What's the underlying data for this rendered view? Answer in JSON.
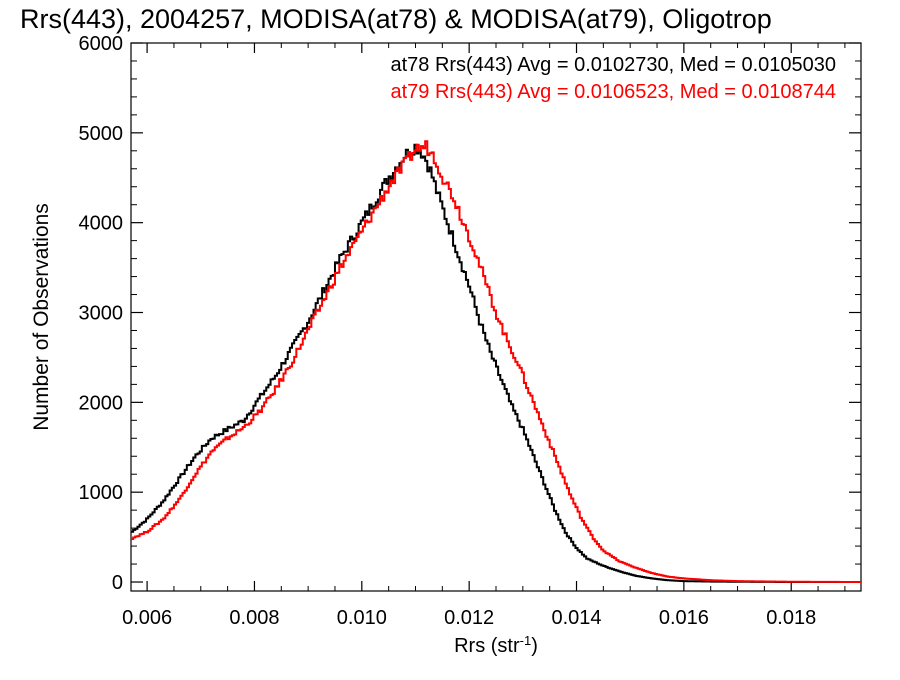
{
  "chart_data": {
    "type": "line",
    "title": "Rrs(443), 2004257, MODISA(at78) & MODISA(at79), Oligotrop",
    "xlabel": "Rrs (str",
    "xlabel_sup": "-1",
    "xlabel_close": ")",
    "ylabel": "Number of Observations",
    "xlim": [
      0.0057,
      0.0193
    ],
    "ylim": [
      -100,
      6000
    ],
    "x_ticks": [
      0.006,
      0.008,
      0.01,
      0.012,
      0.014,
      0.016,
      0.018
    ],
    "x_tick_labels": [
      "0.006",
      "0.008",
      "0.010",
      "0.012",
      "0.014",
      "0.016",
      "0.018"
    ],
    "y_ticks": [
      0,
      1000,
      2000,
      3000,
      4000,
      5000,
      6000
    ],
    "y_tick_labels": [
      "0",
      "1000",
      "2000",
      "3000",
      "4000",
      "5000",
      "6000"
    ],
    "grid": false,
    "legend_position": "top-right",
    "series": [
      {
        "label": "at78 Rrs(443) Avg = 0.0102730, Med = 0.0105030",
        "color": "#000000",
        "x": [
          0.0057,
          0.006,
          0.0063,
          0.0066,
          0.0069,
          0.0072,
          0.0075,
          0.0078,
          0.0081,
          0.0084,
          0.0087,
          0.009,
          0.0093,
          0.0096,
          0.0099,
          0.0102,
          0.0105,
          0.0108,
          0.011,
          0.0111,
          0.0112,
          0.0113,
          0.0114,
          0.0116,
          0.0118,
          0.012,
          0.0122,
          0.0124,
          0.0126,
          0.0128,
          0.013,
          0.0132,
          0.0134,
          0.0136,
          0.0138,
          0.014,
          0.0142,
          0.0145,
          0.0148,
          0.0151,
          0.0154,
          0.0157,
          0.016,
          0.0165,
          0.017,
          0.018,
          0.0193
        ],
        "y": [
          550,
          700,
          900,
          1150,
          1400,
          1600,
          1700,
          1800,
          2050,
          2300,
          2600,
          2900,
          3250,
          3600,
          3900,
          4200,
          4500,
          4750,
          4850,
          4800,
          4700,
          4550,
          4350,
          4000,
          3650,
          3300,
          2900,
          2550,
          2250,
          1950,
          1700,
          1400,
          1100,
          800,
          550,
          380,
          260,
          180,
          120,
          70,
          40,
          20,
          10,
          5,
          3,
          0,
          0
        ]
      },
      {
        "label": "at79 Rrs(443) Avg = 0.0106523, Med = 0.0108744",
        "color": "#ff0000",
        "x": [
          0.0057,
          0.006,
          0.0063,
          0.0066,
          0.0069,
          0.0072,
          0.0075,
          0.0078,
          0.0081,
          0.0084,
          0.0087,
          0.009,
          0.0093,
          0.0096,
          0.0099,
          0.0102,
          0.0105,
          0.0108,
          0.011,
          0.0112,
          0.0113,
          0.0114,
          0.0115,
          0.0117,
          0.0119,
          0.0121,
          0.0123,
          0.0125,
          0.0127,
          0.0129,
          0.0131,
          0.0133,
          0.0135,
          0.0137,
          0.0139,
          0.0141,
          0.0143,
          0.0145,
          0.0148,
          0.0151,
          0.0154,
          0.0157,
          0.016,
          0.0165,
          0.017,
          0.018,
          0.0193
        ],
        "y": [
          480,
          560,
          700,
          920,
          1200,
          1450,
          1600,
          1720,
          1900,
          2150,
          2450,
          2800,
          3150,
          3500,
          3800,
          4100,
          4400,
          4650,
          4820,
          4850,
          4780,
          4680,
          4520,
          4300,
          4000,
          3700,
          3350,
          3000,
          2700,
          2450,
          2150,
          1850,
          1550,
          1250,
          950,
          700,
          500,
          350,
          230,
          160,
          100,
          60,
          40,
          20,
          10,
          3,
          0
        ]
      }
    ]
  }
}
